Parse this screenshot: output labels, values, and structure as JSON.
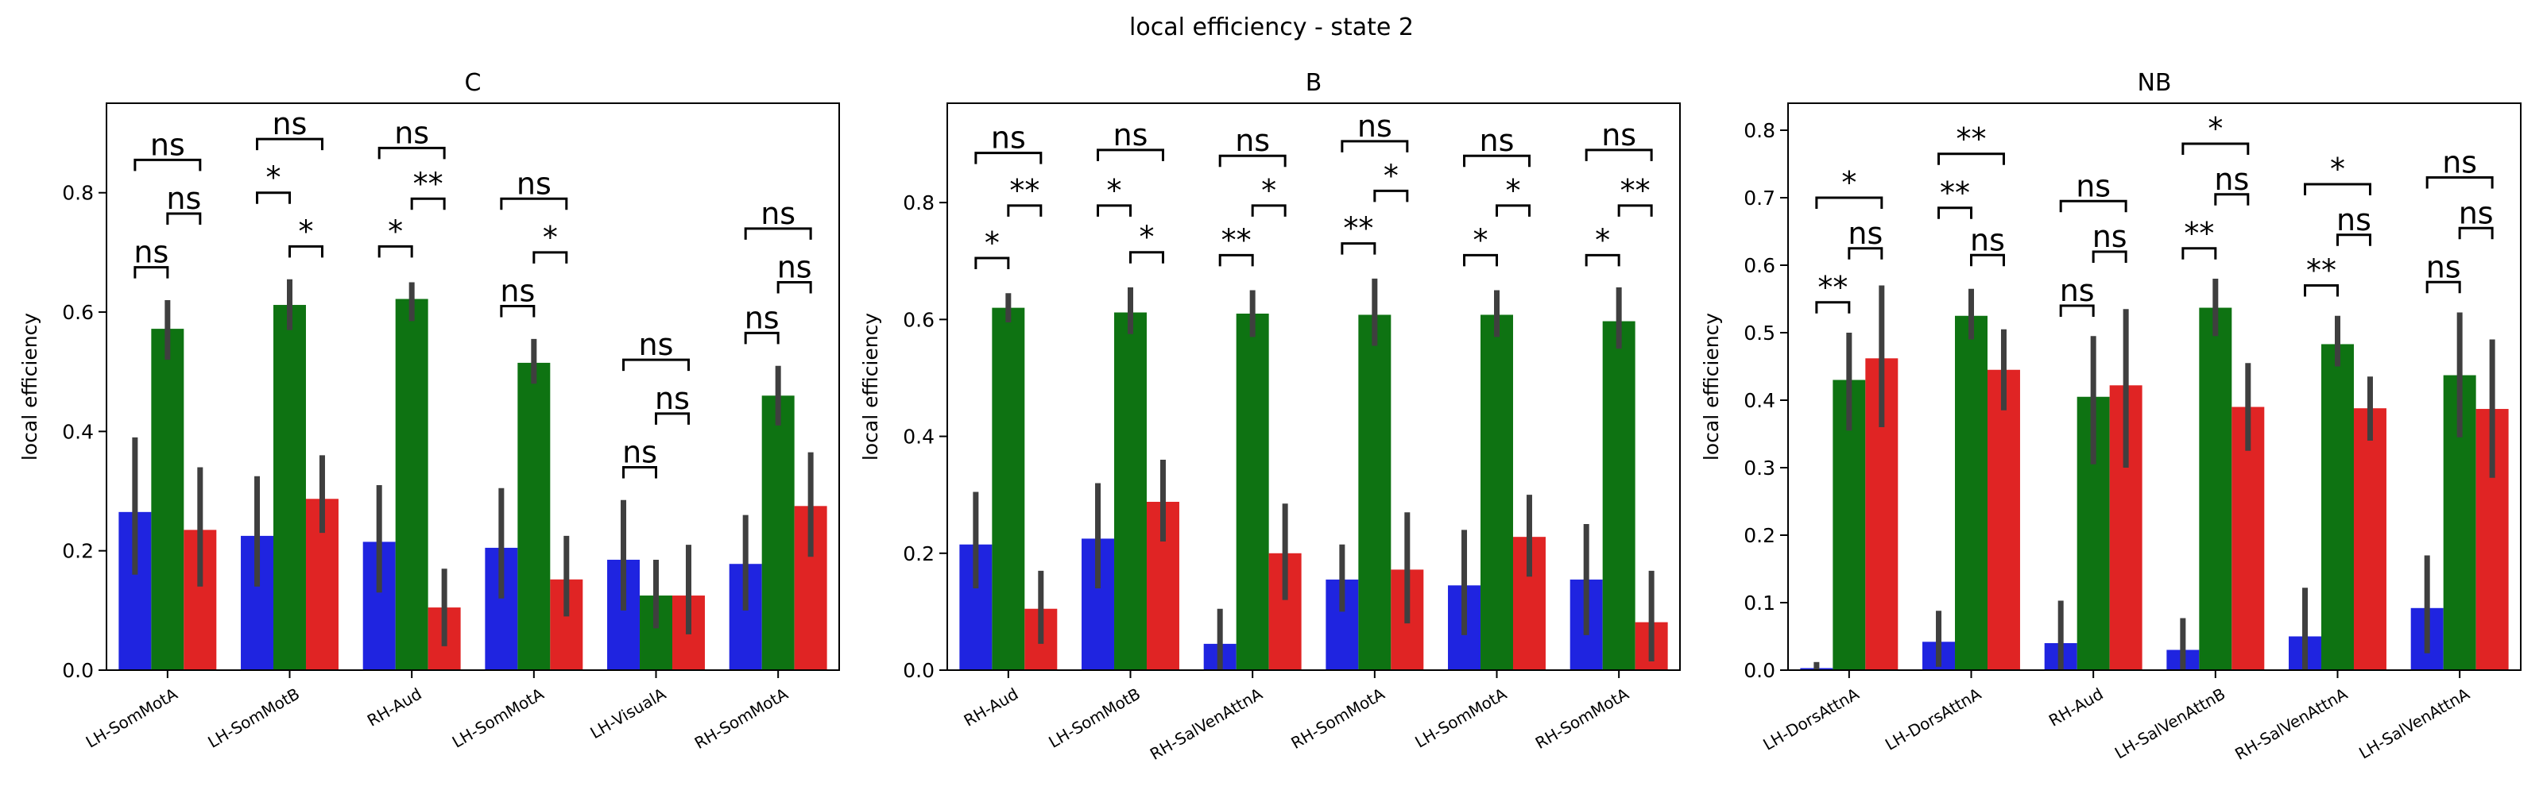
{
  "figure": {
    "title": "local efficiency - state 2"
  },
  "colors": {
    "blue": "#1f24e0",
    "green": "#0e7312",
    "red": "#e02424",
    "errorbar": "#3f3f3f"
  },
  "chart_data": [
    {
      "type": "bar",
      "title": "C",
      "ylabel": "local efficiency",
      "xlabel": "",
      "ylim": [
        0,
        0.95
      ],
      "yticks": [
        "0.0",
        "0.2",
        "0.4",
        "0.6",
        "0.8"
      ],
      "categories": [
        "LH-SomMotA",
        "LH-SomMotB",
        "RH-Aud",
        "LH-SomMotA",
        "LH-VisualA",
        "RH-SomMotA"
      ],
      "series": [
        {
          "color": "blue",
          "values": [
            0.265,
            0.225,
            0.215,
            0.205,
            0.185,
            0.178
          ],
          "ci": [
            [
              0.16,
              0.39
            ],
            [
              0.14,
              0.325
            ],
            [
              0.13,
              0.31
            ],
            [
              0.12,
              0.305
            ],
            [
              0.1,
              0.285
            ],
            [
              0.1,
              0.26
            ]
          ]
        },
        {
          "color": "green",
          "values": [
            0.572,
            0.612,
            0.622,
            0.515,
            0.125,
            0.46
          ],
          "ci": [
            [
              0.52,
              0.62
            ],
            [
              0.57,
              0.655
            ],
            [
              0.585,
              0.65
            ],
            [
              0.48,
              0.555
            ],
            [
              0.07,
              0.185
            ],
            [
              0.41,
              0.51
            ]
          ]
        },
        {
          "color": "red",
          "values": [
            0.235,
            0.287,
            0.105,
            0.152,
            0.125,
            0.275
          ],
          "ci": [
            [
              0.14,
              0.34
            ],
            [
              0.23,
              0.36
            ],
            [
              0.04,
              0.17
            ],
            [
              0.09,
              0.225
            ],
            [
              0.06,
              0.21
            ],
            [
              0.19,
              0.365
            ]
          ]
        }
      ],
      "annotations": [
        [
          {
            "pair": "0-1",
            "label": "ns",
            "y": 0.675
          },
          {
            "pair": "1-2",
            "label": "ns",
            "y": 0.765
          },
          {
            "pair": "0-2",
            "label": "ns",
            "y": 0.855
          }
        ],
        [
          {
            "pair": "0-1",
            "label": "*",
            "y": 0.8
          },
          {
            "pair": "1-2",
            "label": "*",
            "y": 0.71
          },
          {
            "pair": "0-2",
            "label": "ns",
            "y": 0.89
          }
        ],
        [
          {
            "pair": "0-1",
            "label": "*",
            "y": 0.71
          },
          {
            "pair": "1-2",
            "label": "**",
            "y": 0.79
          },
          {
            "pair": "0-2",
            "label": "ns",
            "y": 0.875
          }
        ],
        [
          {
            "pair": "0-1",
            "label": "ns",
            "y": 0.61
          },
          {
            "pair": "1-2",
            "label": "*",
            "y": 0.7
          },
          {
            "pair": "0-2",
            "label": "ns",
            "y": 0.79
          }
        ],
        [
          {
            "pair": "0-1",
            "label": "ns",
            "y": 0.34
          },
          {
            "pair": "1-2",
            "label": "ns",
            "y": 0.43
          },
          {
            "pair": "0-2",
            "label": "ns",
            "y": 0.52
          }
        ],
        [
          {
            "pair": "0-1",
            "label": "ns",
            "y": 0.565
          },
          {
            "pair": "1-2",
            "label": "ns",
            "y": 0.65
          },
          {
            "pair": "0-2",
            "label": "ns",
            "y": 0.74
          }
        ]
      ]
    },
    {
      "type": "bar",
      "title": "B",
      "ylabel": "local efficiency",
      "xlabel": "",
      "ylim": [
        0,
        0.97
      ],
      "yticks": [
        "0.0",
        "0.2",
        "0.4",
        "0.6",
        "0.8"
      ],
      "categories": [
        "RH-Aud",
        "LH-SomMotB",
        "RH-SalVenAttnA",
        "RH-SomMotA",
        "LH-SomMotA",
        "RH-SomMotA"
      ],
      "series": [
        {
          "color": "blue",
          "values": [
            0.215,
            0.225,
            0.045,
            0.155,
            0.145,
            0.155
          ],
          "ci": [
            [
              0.14,
              0.305
            ],
            [
              0.14,
              0.32
            ],
            [
              0.0,
              0.105
            ],
            [
              0.1,
              0.215
            ],
            [
              0.06,
              0.24
            ],
            [
              0.06,
              0.25
            ]
          ]
        },
        {
          "color": "green",
          "values": [
            0.62,
            0.612,
            0.61,
            0.608,
            0.608,
            0.597
          ],
          "ci": [
            [
              0.595,
              0.645
            ],
            [
              0.575,
              0.655
            ],
            [
              0.57,
              0.65
            ],
            [
              0.555,
              0.67
            ],
            [
              0.57,
              0.65
            ],
            [
              0.55,
              0.655
            ]
          ]
        },
        {
          "color": "red",
          "values": [
            0.105,
            0.288,
            0.2,
            0.172,
            0.228,
            0.082
          ],
          "ci": [
            [
              0.045,
              0.17
            ],
            [
              0.22,
              0.36
            ],
            [
              0.12,
              0.285
            ],
            [
              0.08,
              0.27
            ],
            [
              0.16,
              0.3
            ],
            [
              0.015,
              0.17
            ]
          ]
        }
      ],
      "annotations": [
        [
          {
            "pair": "0-1",
            "label": "*",
            "y": 0.705
          },
          {
            "pair": "1-2",
            "label": "**",
            "y": 0.795
          },
          {
            "pair": "0-2",
            "label": "ns",
            "y": 0.885
          }
        ],
        [
          {
            "pair": "0-1",
            "label": "*",
            "y": 0.795
          },
          {
            "pair": "1-2",
            "label": "*",
            "y": 0.715
          },
          {
            "pair": "0-2",
            "label": "ns",
            "y": 0.89
          }
        ],
        [
          {
            "pair": "0-1",
            "label": "**",
            "y": 0.71
          },
          {
            "pair": "1-2",
            "label": "*",
            "y": 0.795
          },
          {
            "pair": "0-2",
            "label": "ns",
            "y": 0.88
          }
        ],
        [
          {
            "pair": "0-1",
            "label": "**",
            "y": 0.73
          },
          {
            "pair": "1-2",
            "label": "*",
            "y": 0.82
          },
          {
            "pair": "0-2",
            "label": "ns",
            "y": 0.905
          }
        ],
        [
          {
            "pair": "0-1",
            "label": "*",
            "y": 0.71
          },
          {
            "pair": "1-2",
            "label": "*",
            "y": 0.795
          },
          {
            "pair": "0-2",
            "label": "ns",
            "y": 0.88
          }
        ],
        [
          {
            "pair": "0-1",
            "label": "*",
            "y": 0.71
          },
          {
            "pair": "1-2",
            "label": "**",
            "y": 0.795
          },
          {
            "pair": "0-2",
            "label": "ns",
            "y": 0.89
          }
        ]
      ]
    },
    {
      "type": "bar",
      "title": "NB",
      "ylabel": "local efficiency",
      "xlabel": "",
      "ylim": [
        0,
        0.84
      ],
      "yticks": [
        "0.0",
        "0.1",
        "0.2",
        "0.3",
        "0.4",
        "0.5",
        "0.6",
        "0.7",
        "0.8"
      ],
      "categories": [
        "LH-DorsAttnA",
        "LH-DorsAttnA",
        "RH-Aud",
        "LH-SalVenAttnB",
        "RH-SalVenAttnA",
        "LH-SalVenAttnA"
      ],
      "series": [
        {
          "color": "blue",
          "values": [
            0.003,
            0.042,
            0.04,
            0.03,
            0.05,
            0.092
          ],
          "ci": [
            [
              0.0,
              0.012
            ],
            [
              0.005,
              0.088
            ],
            [
              0.0,
              0.103
            ],
            [
              0.0,
              0.077
            ],
            [
              0.0,
              0.122
            ],
            [
              0.025,
              0.17
            ]
          ]
        },
        {
          "color": "green",
          "values": [
            0.43,
            0.525,
            0.405,
            0.537,
            0.483,
            0.437
          ],
          "ci": [
            [
              0.355,
              0.5
            ],
            [
              0.49,
              0.565
            ],
            [
              0.305,
              0.495
            ],
            [
              0.495,
              0.58
            ],
            [
              0.45,
              0.525
            ],
            [
              0.345,
              0.53
            ]
          ]
        },
        {
          "color": "red",
          "values": [
            0.462,
            0.445,
            0.422,
            0.39,
            0.388,
            0.387
          ],
          "ci": [
            [
              0.36,
              0.57
            ],
            [
              0.385,
              0.505
            ],
            [
              0.3,
              0.535
            ],
            [
              0.325,
              0.455
            ],
            [
              0.34,
              0.435
            ],
            [
              0.285,
              0.49
            ]
          ]
        }
      ],
      "annotations": [
        [
          {
            "pair": "0-1",
            "label": "**",
            "y": 0.545
          },
          {
            "pair": "1-2",
            "label": "ns",
            "y": 0.625
          },
          {
            "pair": "0-2",
            "label": "*",
            "y": 0.7
          }
        ],
        [
          {
            "pair": "0-1",
            "label": "**",
            "y": 0.685
          },
          {
            "pair": "1-2",
            "label": "ns",
            "y": 0.615
          },
          {
            "pair": "0-2",
            "label": "**",
            "y": 0.765
          }
        ],
        [
          {
            "pair": "0-1",
            "label": "ns",
            "y": 0.54
          },
          {
            "pair": "1-2",
            "label": "ns",
            "y": 0.62
          },
          {
            "pair": "0-2",
            "label": "ns",
            "y": 0.695
          }
        ],
        [
          {
            "pair": "0-1",
            "label": "**",
            "y": 0.625
          },
          {
            "pair": "1-2",
            "label": "ns",
            "y": 0.705
          },
          {
            "pair": "0-2",
            "label": "*",
            "y": 0.78
          }
        ],
        [
          {
            "pair": "0-1",
            "label": "**",
            "y": 0.57
          },
          {
            "pair": "1-2",
            "label": "ns",
            "y": 0.645
          },
          {
            "pair": "0-2",
            "label": "*",
            "y": 0.72
          }
        ],
        [
          {
            "pair": "0-1",
            "label": "ns",
            "y": 0.575
          },
          {
            "pair": "1-2",
            "label": "ns",
            "y": 0.655
          },
          {
            "pair": "0-2",
            "label": "ns",
            "y": 0.73
          }
        ]
      ]
    }
  ]
}
